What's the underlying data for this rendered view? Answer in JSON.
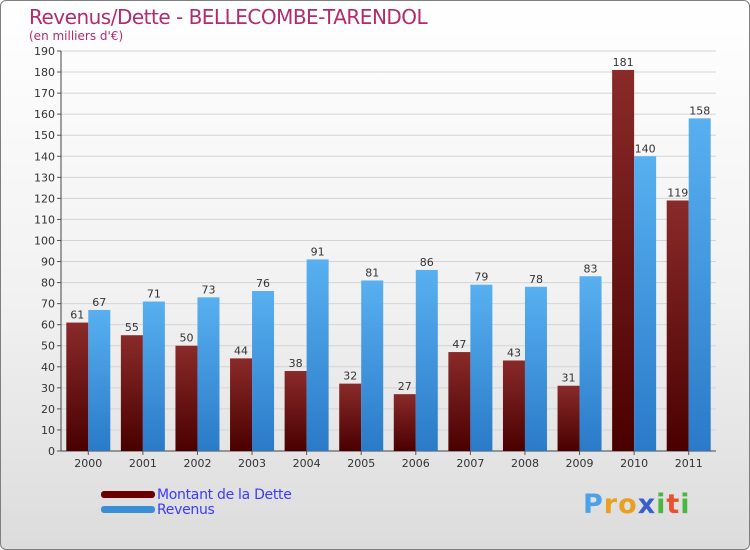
{
  "chart_data": {
    "type": "bar",
    "title": "Revenus/Dette - BELLECOMBE-TARENDOL",
    "subtitle": "(en milliers d'€)",
    "categories": [
      "2000",
      "2001",
      "2002",
      "2003",
      "2004",
      "2005",
      "2006",
      "2007",
      "2008",
      "2009",
      "2010",
      "2011"
    ],
    "series": [
      {
        "name": "Montant de la Dette",
        "values": [
          61,
          55,
          50,
          44,
          38,
          32,
          27,
          47,
          43,
          31,
          181,
          119
        ],
        "color": "#7a1a1a"
      },
      {
        "name": "Revenus",
        "values": [
          67,
          71,
          73,
          76,
          91,
          81,
          86,
          79,
          78,
          83,
          140,
          158
        ],
        "color": "#4aa3e8"
      }
    ],
    "ylim": [
      0,
      190
    ],
    "yticks": [
      0,
      10,
      20,
      30,
      40,
      50,
      60,
      70,
      80,
      90,
      100,
      110,
      120,
      130,
      140,
      150,
      160,
      170,
      180,
      190
    ],
    "grid": true,
    "legend": "bottom-left"
  },
  "logo": {
    "letters": [
      "P",
      "r",
      "o",
      "x",
      "i",
      "t",
      "i"
    ],
    "colors": [
      "#4aa3e8",
      "#e8a020",
      "#e8a020",
      "#3a5fcd",
      "#4ab840",
      "#e85030",
      "#4ab840"
    ]
  }
}
